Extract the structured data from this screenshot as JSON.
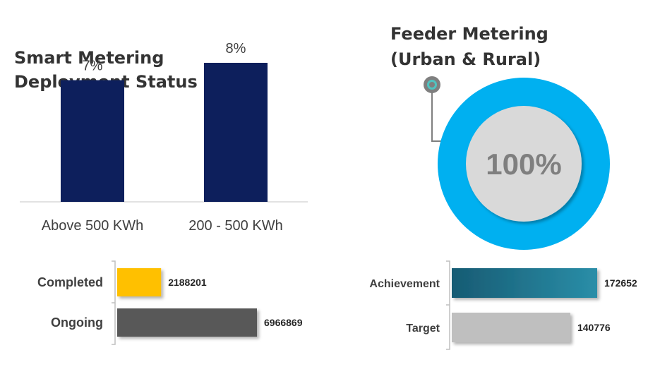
{
  "left_title": [
    "Smart Metering",
    "Deployment Status"
  ],
  "right_title": [
    "Feeder Metering",
    "(Urban & Rural)"
  ],
  "chart_data": [
    {
      "type": "bar",
      "title": "Smart Metering Deployment Status",
      "categories": [
        "Above 500 KWh",
        "200 - 500 KWh"
      ],
      "values": [
        7,
        8
      ],
      "value_labels": [
        "7%",
        "8%"
      ],
      "unit": "%",
      "color": "#0d1f5c",
      "grid": false
    },
    {
      "type": "bar",
      "orientation": "horizontal",
      "categories": [
        "Completed",
        "Ongoing"
      ],
      "values": [
        2188201,
        6966869
      ],
      "colors": [
        "#ffc000",
        "#595959"
      ]
    },
    {
      "type": "pie",
      "title": "Feeder Metering (Urban & Rural)",
      "style": "donut",
      "values": [
        100
      ],
      "center_label": "100%",
      "ring_color": "#00b0f0",
      "center_color": "#d9d9d9"
    },
    {
      "type": "bar",
      "orientation": "horizontal",
      "categories": [
        "Achievement",
        "Target"
      ],
      "values": [
        172652,
        140776
      ],
      "colors": [
        "#1f7f95",
        "#bfbfbf"
      ]
    }
  ]
}
